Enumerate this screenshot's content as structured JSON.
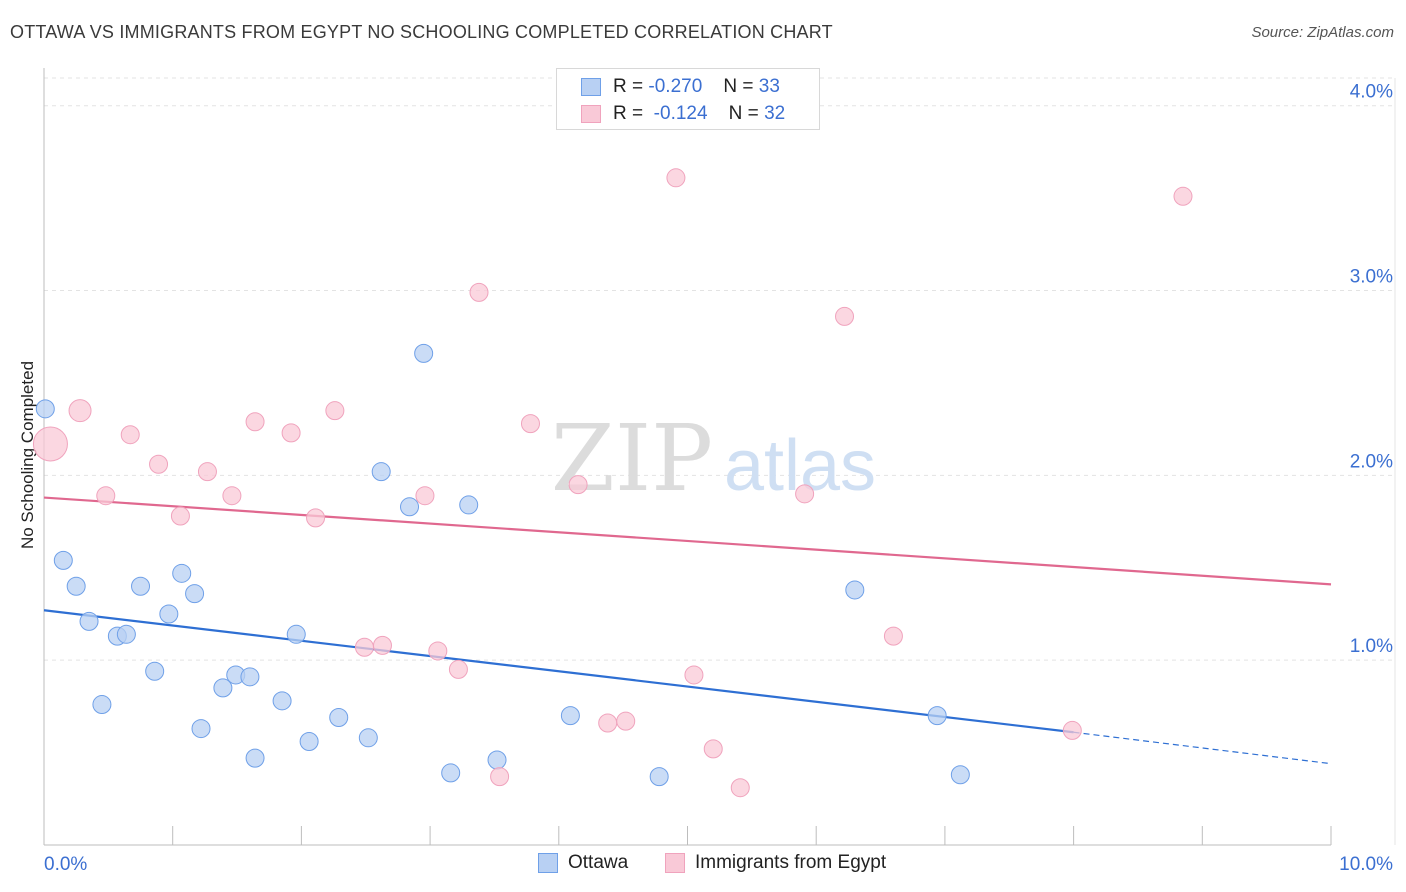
{
  "header": {
    "title": "OTTAWA VS IMMIGRANTS FROM EGYPT NO SCHOOLING COMPLETED CORRELATION CHART",
    "source": "Source: ZipAtlas.com"
  },
  "watermark": {
    "zip": "ZIP",
    "atlas": "atlas"
  },
  "legend": {
    "rows": [
      {
        "r_label": "R =",
        "r_value": "-0.270",
        "n_label": "N =",
        "n_value": "33"
      },
      {
        "r_label": "R =",
        "r_value": "-0.124",
        "n_label": "N =",
        "n_value": "32"
      }
    ]
  },
  "chart_data": {
    "type": "scatter",
    "ylabel": "No Schooling Completed",
    "xlabel": "",
    "xlim": [
      0,
      10
    ],
    "ylim": [
      0,
      4.15
    ],
    "x_tick_labels": [
      "0.0%",
      "10.0%"
    ],
    "y_ticks": [
      {
        "value": 1.0,
        "label": "1.0%"
      },
      {
        "value": 2.0,
        "label": "2.0%"
      },
      {
        "value": 3.0,
        "label": "3.0%"
      },
      {
        "value": 4.0,
        "label": "4.0%"
      }
    ],
    "grid": true,
    "legend_position": "top-center",
    "series": [
      {
        "name": "Ottawa",
        "color": "#6fa0e8",
        "fill": "#b8d0f3",
        "line_color": "#2e6fd3",
        "trend": {
          "x0": 0,
          "y0": 1.27,
          "x1": 8.0,
          "y1": 0.61,
          "dash_to_x": 10,
          "dash_to_y": 0.44
        },
        "points": [
          [
            0.01,
            2.36,
            18
          ],
          [
            0.15,
            1.54,
            18
          ],
          [
            0.25,
            1.4,
            18
          ],
          [
            0.35,
            1.21,
            18
          ],
          [
            0.45,
            0.76,
            18
          ],
          [
            0.57,
            1.13,
            18
          ],
          [
            0.64,
            1.14,
            18
          ],
          [
            0.75,
            1.4,
            18
          ],
          [
            0.86,
            0.94,
            18
          ],
          [
            0.97,
            1.25,
            18
          ],
          [
            1.07,
            1.47,
            18
          ],
          [
            1.17,
            1.36,
            18
          ],
          [
            1.22,
            0.63,
            18
          ],
          [
            1.39,
            0.85,
            18
          ],
          [
            1.49,
            0.92,
            18
          ],
          [
            1.6,
            0.91,
            18
          ],
          [
            1.64,
            0.47,
            18
          ],
          [
            1.85,
            0.78,
            18
          ],
          [
            1.96,
            1.14,
            18
          ],
          [
            2.06,
            0.56,
            18
          ],
          [
            2.29,
            0.69,
            18
          ],
          [
            2.52,
            0.58,
            18
          ],
          [
            2.62,
            2.02,
            18
          ],
          [
            2.84,
            1.83,
            18
          ],
          [
            2.95,
            2.66,
            18
          ],
          [
            3.16,
            0.39,
            18
          ],
          [
            3.3,
            1.84,
            18
          ],
          [
            3.52,
            0.46,
            18
          ],
          [
            4.09,
            0.7,
            18
          ],
          [
            4.78,
            0.37,
            18
          ],
          [
            6.3,
            1.38,
            18
          ],
          [
            6.94,
            0.7,
            18
          ],
          [
            7.12,
            0.38,
            18
          ]
        ]
      },
      {
        "name": "Immigrants from Egypt",
        "color": "#f0a3bd",
        "fill": "#f9c9d7",
        "line_color": "#e0688f",
        "trend": {
          "x0": 0,
          "y0": 1.88,
          "x1": 10,
          "y1": 1.41
        },
        "points": [
          [
            0.05,
            2.17,
            34
          ],
          [
            0.28,
            2.35,
            22
          ],
          [
            0.48,
            1.89,
            18
          ],
          [
            0.67,
            2.22,
            18
          ],
          [
            0.89,
            2.06,
            18
          ],
          [
            1.06,
            1.78,
            18
          ],
          [
            1.27,
            2.02,
            18
          ],
          [
            1.46,
            1.89,
            18
          ],
          [
            1.64,
            2.29,
            18
          ],
          [
            1.92,
            2.23,
            18
          ],
          [
            2.11,
            1.77,
            18
          ],
          [
            2.26,
            2.35,
            18
          ],
          [
            2.49,
            1.07,
            18
          ],
          [
            2.63,
            1.08,
            18
          ],
          [
            2.96,
            1.89,
            18
          ],
          [
            3.06,
            1.05,
            18
          ],
          [
            3.22,
            0.95,
            18
          ],
          [
            3.38,
            2.99,
            18
          ],
          [
            3.54,
            0.37,
            18
          ],
          [
            3.78,
            2.28,
            18
          ],
          [
            4.15,
            1.95,
            18
          ],
          [
            4.38,
            0.66,
            18
          ],
          [
            4.52,
            0.67,
            18
          ],
          [
            4.91,
            3.61,
            18
          ],
          [
            5.05,
            0.92,
            18
          ],
          [
            5.2,
            0.52,
            18
          ],
          [
            5.41,
            0.31,
            18
          ],
          [
            5.91,
            1.9,
            18
          ],
          [
            6.22,
            2.86,
            18
          ],
          [
            6.6,
            1.13,
            18
          ],
          [
            7.99,
            0.62,
            18
          ],
          [
            8.85,
            3.51,
            18
          ]
        ]
      }
    ]
  }
}
